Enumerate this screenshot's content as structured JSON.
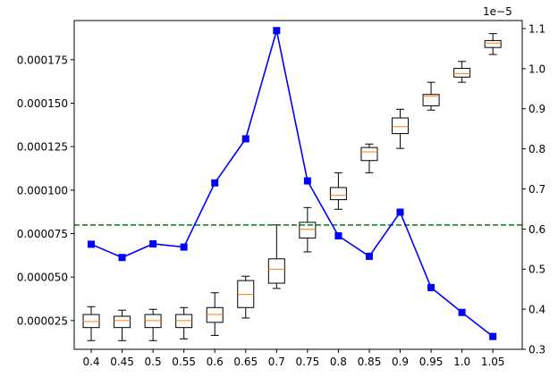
{
  "chart_data": {
    "type": "box+line",
    "categories": [
      "0.4",
      "0.45",
      "0.5",
      "0.55",
      "0.6",
      "0.65",
      "0.7",
      "0.75",
      "0.8",
      "0.85",
      "0.9",
      "0.95",
      "1.0",
      "1.05"
    ],
    "left_axis": {
      "ylim": [
        8.5e-06,
        0.0001975
      ],
      "ticks": [
        2.5e-05,
        5e-05,
        7.5e-05,
        0.0001,
        0.000125,
        0.00015,
        0.000175
      ],
      "tick_labels": [
        "0.000025",
        "0.000050",
        "0.000075",
        "0.000100",
        "0.000125",
        "0.000150",
        "0.000175"
      ]
    },
    "right_axis": {
      "ylim": [
        3e-06,
        1.12e-05
      ],
      "ticks": [
        3e-06,
        4e-06,
        5e-06,
        6e-06,
        7e-06,
        8e-06,
        9e-06,
        1e-05,
        1.1e-05
      ],
      "tick_labels": [
        "0.3",
        "0.4",
        "0.5",
        "0.6",
        "0.7",
        "0.8",
        "0.9",
        "1.0",
        "1.1"
      ],
      "offset_text": "1e−5"
    },
    "boxes": [
      {
        "whislo": 1.35e-05,
        "q1": 2.1e-05,
        "med": 2.45e-05,
        "q3": 2.85e-05,
        "whishi": 3.3e-05
      },
      {
        "whislo": 1.35e-05,
        "q1": 2.1e-05,
        "med": 2.5e-05,
        "q3": 2.75e-05,
        "whishi": 3.1e-05
      },
      {
        "whislo": 1.35e-05,
        "q1": 2.1e-05,
        "med": 2.5e-05,
        "q3": 2.85e-05,
        "whishi": 3.15e-05
      },
      {
        "whislo": 1.45e-05,
        "q1": 2.1e-05,
        "med": 2.5e-05,
        "q3": 2.85e-05,
        "whishi": 3.25e-05
      },
      {
        "whislo": 1.65e-05,
        "q1": 2.4e-05,
        "med": 2.85e-05,
        "q3": 3.25e-05,
        "whishi": 4.1e-05
      },
      {
        "whislo": 2.65e-05,
        "q1": 3.25e-05,
        "med": 4e-05,
        "q3": 4.8e-05,
        "whishi": 5.05e-05
      },
      {
        "whislo": 4.35e-05,
        "q1": 4.65e-05,
        "med": 5.45e-05,
        "q3": 6.05e-05,
        "whishi": 8e-05
      },
      {
        "whislo": 6.45e-05,
        "q1": 7.25e-05,
        "med": 7.75e-05,
        "q3": 8.15e-05,
        "whishi": 9e-05
      },
      {
        "whislo": 8.9e-05,
        "q1": 9.45e-05,
        "med": 9.7e-05,
        "q3": 0.0001015,
        "whishi": 0.00011
      },
      {
        "whislo": 0.00011,
        "q1": 0.000117,
        "med": 0.000122,
        "q3": 0.0001245,
        "whishi": 0.0001265
      },
      {
        "whislo": 0.000124,
        "q1": 0.0001325,
        "med": 0.0001365,
        "q3": 0.0001415,
        "whishi": 0.0001465
      },
      {
        "whislo": 0.000146,
        "q1": 0.0001485,
        "med": 0.000154,
        "q3": 0.000155,
        "whishi": 0.000162
      },
      {
        "whislo": 0.000162,
        "q1": 0.000165,
        "med": 0.000167,
        "q3": 0.00017,
        "whishi": 0.000174
      },
      {
        "whislo": 0.000178,
        "q1": 0.000182,
        "med": 0.0001845,
        "q3": 0.000186,
        "whishi": 0.00019
      }
    ],
    "line_series": {
      "axis": "right",
      "values": [
        5.62e-06,
        5.29e-06,
        5.63e-06,
        5.55e-06,
        7.15e-06,
        8.25e-06,
        1.095e-05,
        7.2e-06,
        5.83e-06,
        5.32e-06,
        6.42e-06,
        4.54e-06,
        3.92e-06,
        3.32e-06
      ]
    },
    "hline": {
      "axis": "right",
      "value": 6.1e-06
    },
    "xlabel": "",
    "ylabel": "",
    "title": "",
    "grid": false,
    "colors": {
      "line": "#0000ff",
      "marker": "#0000ff",
      "hline": "#008000",
      "median": "#ff7f0e",
      "box": "#000000"
    }
  }
}
